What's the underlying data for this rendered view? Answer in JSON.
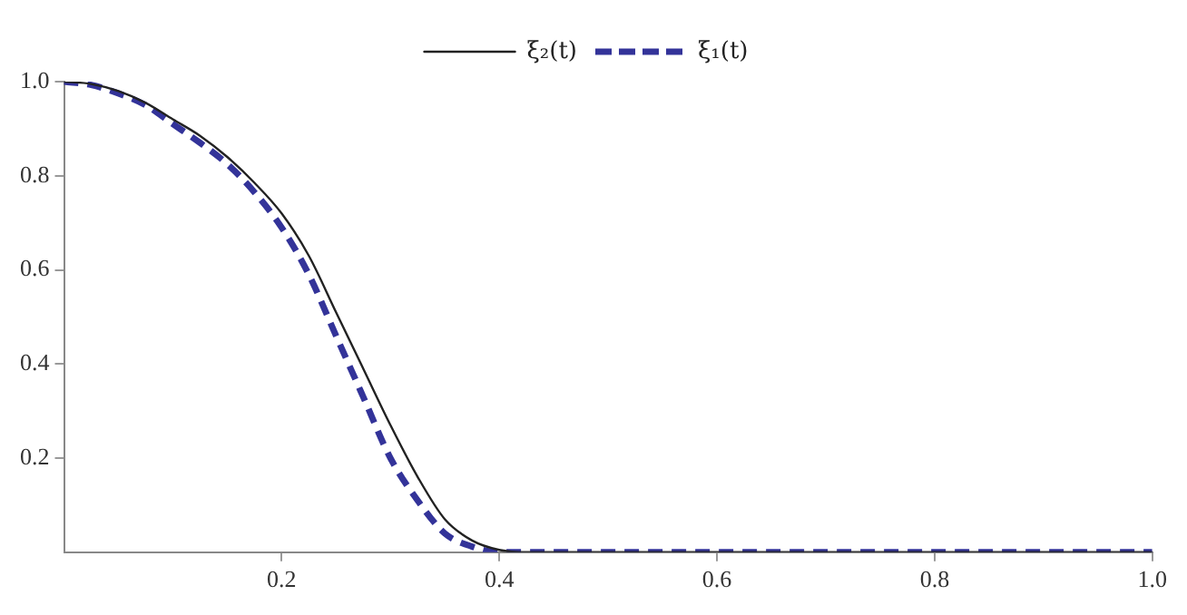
{
  "chart_data": {
    "type": "line",
    "xlim": [
      0,
      1
    ],
    "ylim": [
      0,
      1
    ],
    "xticks": [
      0.2,
      0.4,
      0.6,
      0.8,
      {
        "value": 1,
        "label": "1.0"
      }
    ],
    "yticks": [
      0.2,
      0.4,
      0.6,
      0.8,
      {
        "value": 1,
        "label": "1.0"
      }
    ],
    "grid": false,
    "legend": "top",
    "marker": "none",
    "series": [
      {
        "name": "ξ₂(t)",
        "color": "#222222",
        "line_style": "solid",
        "x": [
          0,
          0.025,
          0.05,
          0.075,
          0.1,
          0.125,
          0.15,
          0.175,
          0.2,
          0.225,
          0.25,
          0.275,
          0.3,
          0.325,
          0.35,
          0.375,
          0.4,
          0.425,
          1.0
        ],
        "values": [
          1,
          0.995,
          0.98,
          0.955,
          0.92,
          0.885,
          0.84,
          0.785,
          0.72,
          0.63,
          0.51,
          0.39,
          0.27,
          0.16,
          0.07,
          0.025,
          0.005,
          0,
          0
        ]
      },
      {
        "name": "ξ₁(t)",
        "color": "#333399",
        "line_style": "dashed",
        "x": [
          0,
          0.025,
          0.05,
          0.075,
          0.1,
          0.125,
          0.15,
          0.175,
          0.2,
          0.225,
          0.25,
          0.275,
          0.3,
          0.325,
          0.35,
          0.375,
          0.4,
          0.45,
          1.0
        ],
        "values": [
          1,
          0.993,
          0.975,
          0.95,
          0.91,
          0.87,
          0.825,
          0.765,
          0.69,
          0.59,
          0.46,
          0.33,
          0.2,
          0.11,
          0.04,
          0.012,
          0,
          0,
          0
        ]
      }
    ]
  }
}
